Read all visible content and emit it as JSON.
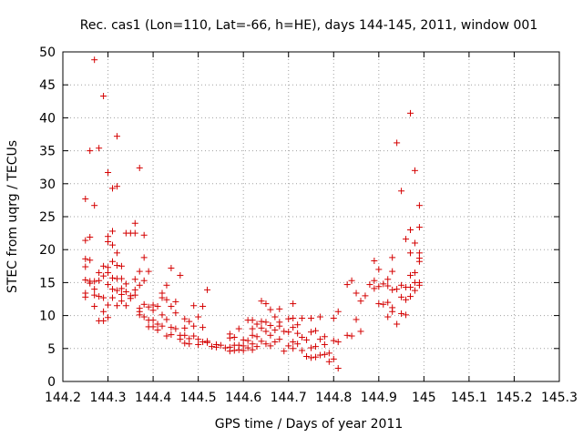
{
  "chart_data": {
    "type": "scatter",
    "title": "Rec. cas1 (Lon=110, Lat=-66, h=HE), days 144-145, 2011, window 001",
    "xlabel": "GPS time / Days of year 2011",
    "ylabel": "STEC from uqrg / TECUs",
    "xlim": [
      144.2,
      145.3
    ],
    "ylim": [
      0,
      50
    ],
    "xticks": [
      144.2,
      144.3,
      144.4,
      144.5,
      144.6,
      144.7,
      144.8,
      144.9,
      145.0,
      145.1,
      145.2,
      145.3
    ],
    "xtick_labels": [
      "144.2",
      "144.3",
      "144.4",
      "144.5",
      "144.6",
      "144.7",
      "144.8",
      "144.9",
      "145",
      "145.1",
      "145.2",
      "145.3"
    ],
    "yticks": [
      0,
      5,
      10,
      15,
      20,
      25,
      30,
      35,
      40,
      45,
      50
    ],
    "ytick_labels": [
      "0",
      "5",
      "10",
      "15",
      "20",
      "25",
      "30",
      "35",
      "40",
      "45",
      "50"
    ],
    "grid": true,
    "marker": "+",
    "color": "#d40000",
    "series": [
      {
        "name": "STEC",
        "points": [
          [
            144.25,
            27.7
          ],
          [
            144.25,
            21.4
          ],
          [
            144.25,
            18.6
          ],
          [
            144.25,
            17.4
          ],
          [
            144.25,
            15.4
          ],
          [
            144.25,
            13.4
          ],
          [
            144.25,
            12.8
          ],
          [
            144.26,
            35.0
          ],
          [
            144.26,
            21.9
          ],
          [
            144.26,
            18.4
          ],
          [
            144.26,
            15.2
          ],
          [
            144.26,
            14.9
          ],
          [
            144.27,
            48.8
          ],
          [
            144.27,
            26.7
          ],
          [
            144.27,
            15.2
          ],
          [
            144.27,
            14.0
          ],
          [
            144.27,
            13.1
          ],
          [
            144.27,
            11.4
          ],
          [
            144.28,
            35.4
          ],
          [
            144.28,
            16.5
          ],
          [
            144.28,
            15.3
          ],
          [
            144.28,
            12.9
          ],
          [
            144.28,
            9.2
          ],
          [
            144.29,
            43.3
          ],
          [
            144.29,
            17.5
          ],
          [
            144.29,
            16.0
          ],
          [
            144.29,
            12.7
          ],
          [
            144.29,
            10.6
          ],
          [
            144.29,
            9.2
          ],
          [
            144.3,
            31.7
          ],
          [
            144.3,
            22.0
          ],
          [
            144.3,
            21.2
          ],
          [
            144.3,
            17.3
          ],
          [
            144.3,
            16.5
          ],
          [
            144.3,
            14.7
          ],
          [
            144.3,
            11.6
          ],
          [
            144.3,
            9.7
          ],
          [
            144.31,
            29.3
          ],
          [
            144.31,
            22.8
          ],
          [
            144.31,
            20.7
          ],
          [
            144.31,
            18.2
          ],
          [
            144.31,
            15.7
          ],
          [
            144.31,
            14.0
          ],
          [
            144.31,
            12.7
          ],
          [
            144.32,
            37.2
          ],
          [
            144.32,
            29.6
          ],
          [
            144.32,
            19.5
          ],
          [
            144.32,
            17.6
          ],
          [
            144.32,
            15.6
          ],
          [
            144.32,
            13.8
          ],
          [
            144.32,
            11.5
          ],
          [
            144.33,
            17.5
          ],
          [
            144.33,
            15.6
          ],
          [
            144.33,
            14.1
          ],
          [
            144.33,
            13.2
          ],
          [
            144.33,
            12.2
          ],
          [
            144.34,
            22.5
          ],
          [
            144.34,
            14.8
          ],
          [
            144.34,
            13.6
          ],
          [
            144.34,
            11.5
          ],
          [
            144.35,
            22.5
          ],
          [
            144.35,
            13.0
          ],
          [
            144.35,
            12.6
          ],
          [
            144.36,
            24.0
          ],
          [
            144.36,
            22.5
          ],
          [
            144.36,
            15.5
          ],
          [
            144.36,
            13.9
          ],
          [
            144.36,
            13.1
          ],
          [
            144.37,
            32.4
          ],
          [
            144.37,
            16.7
          ],
          [
            144.37,
            14.6
          ],
          [
            144.37,
            11.1
          ],
          [
            144.37,
            10.6
          ],
          [
            144.37,
            10.1
          ],
          [
            144.38,
            22.2
          ],
          [
            144.38,
            18.8
          ],
          [
            144.38,
            15.3
          ],
          [
            144.38,
            11.7
          ],
          [
            144.38,
            9.8
          ],
          [
            144.39,
            16.7
          ],
          [
            144.39,
            11.3
          ],
          [
            144.39,
            9.3
          ],
          [
            144.39,
            8.3
          ],
          [
            144.4,
            11.6
          ],
          [
            144.4,
            10.8
          ],
          [
            144.4,
            9.3
          ],
          [
            144.4,
            8.3
          ],
          [
            144.41,
            11.4
          ],
          [
            144.41,
            8.7
          ],
          [
            144.41,
            7.8
          ],
          [
            144.42,
            13.4
          ],
          [
            144.42,
            12.7
          ],
          [
            144.42,
            10.1
          ],
          [
            144.42,
            8.4
          ],
          [
            144.43,
            14.6
          ],
          [
            144.43,
            12.4
          ],
          [
            144.43,
            9.4
          ],
          [
            144.43,
            6.9
          ],
          [
            144.44,
            17.2
          ],
          [
            144.44,
            11.4
          ],
          [
            144.44,
            8.2
          ],
          [
            144.44,
            7.1
          ],
          [
            144.45,
            12.1
          ],
          [
            144.45,
            10.4
          ],
          [
            144.45,
            8.0
          ],
          [
            144.46,
            16.1
          ],
          [
            144.46,
            7.0
          ],
          [
            144.46,
            6.4
          ],
          [
            144.47,
            9.5
          ],
          [
            144.47,
            8.1
          ],
          [
            144.47,
            7.0
          ],
          [
            144.47,
            5.8
          ],
          [
            144.48,
            9.1
          ],
          [
            144.48,
            6.5
          ],
          [
            144.48,
            5.7
          ],
          [
            144.49,
            11.5
          ],
          [
            144.49,
            8.4
          ],
          [
            144.49,
            6.9
          ],
          [
            144.5,
            9.8
          ],
          [
            144.5,
            6.4
          ],
          [
            144.5,
            5.6
          ],
          [
            144.51,
            11.4
          ],
          [
            144.51,
            8.2
          ],
          [
            144.51,
            6.0
          ],
          [
            144.52,
            13.9
          ],
          [
            144.52,
            6.1
          ],
          [
            144.52,
            5.9
          ],
          [
            144.53,
            5.3
          ],
          [
            144.54,
            5.6
          ],
          [
            144.54,
            5.2
          ],
          [
            144.55,
            5.5
          ],
          [
            144.56,
            5.1
          ],
          [
            144.57,
            7.2
          ],
          [
            144.57,
            6.6
          ],
          [
            144.57,
            5.2
          ],
          [
            144.57,
            4.6
          ],
          [
            144.58,
            6.7
          ],
          [
            144.58,
            5.5
          ],
          [
            144.58,
            4.7
          ],
          [
            144.59,
            8.0
          ],
          [
            144.59,
            5.5
          ],
          [
            144.59,
            4.8
          ],
          [
            144.6,
            6.3
          ],
          [
            144.6,
            5.4
          ],
          [
            144.6,
            4.7
          ],
          [
            144.61,
            9.3
          ],
          [
            144.61,
            6.2
          ],
          [
            144.61,
            5.1
          ],
          [
            144.62,
            9.3
          ],
          [
            144.62,
            8.0
          ],
          [
            144.62,
            7.0
          ],
          [
            144.62,
            5.7
          ],
          [
            144.62,
            4.8
          ],
          [
            144.63,
            8.7
          ],
          [
            144.63,
            6.8
          ],
          [
            144.63,
            5.3
          ],
          [
            144.64,
            12.2
          ],
          [
            144.64,
            9.1
          ],
          [
            144.64,
            8.1
          ],
          [
            144.64,
            6.1
          ],
          [
            144.65,
            11.8
          ],
          [
            144.65,
            9.0
          ],
          [
            144.65,
            7.6
          ],
          [
            144.65,
            5.7
          ],
          [
            144.66,
            10.9
          ],
          [
            144.66,
            8.5
          ],
          [
            144.66,
            7.0
          ],
          [
            144.66,
            5.4
          ],
          [
            144.67,
            9.8
          ],
          [
            144.67,
            7.8
          ],
          [
            144.67,
            6.0
          ],
          [
            144.68,
            11.0
          ],
          [
            144.68,
            9.0
          ],
          [
            144.68,
            8.4
          ],
          [
            144.68,
            6.4
          ],
          [
            144.69,
            7.6
          ],
          [
            144.69,
            4.6
          ],
          [
            144.7,
            9.5
          ],
          [
            144.7,
            7.5
          ],
          [
            144.7,
            5.4
          ],
          [
            144.71,
            11.8
          ],
          [
            144.71,
            9.6
          ],
          [
            144.71,
            8.2
          ],
          [
            144.71,
            6.0
          ],
          [
            144.71,
            5.0
          ],
          [
            144.72,
            8.6
          ],
          [
            144.72,
            7.3
          ],
          [
            144.72,
            5.7
          ],
          [
            144.73,
            9.6
          ],
          [
            144.73,
            6.7
          ],
          [
            144.73,
            4.7
          ],
          [
            144.74,
            6.3
          ],
          [
            144.74,
            3.8
          ],
          [
            144.75,
            9.6
          ],
          [
            144.75,
            7.5
          ],
          [
            144.75,
            5.1
          ],
          [
            144.75,
            3.6
          ],
          [
            144.76,
            7.7
          ],
          [
            144.76,
            5.3
          ],
          [
            144.76,
            3.7
          ],
          [
            144.77,
            9.8
          ],
          [
            144.77,
            6.4
          ],
          [
            144.77,
            4.0
          ],
          [
            144.78,
            6.8
          ],
          [
            144.78,
            5.6
          ],
          [
            144.78,
            4.1
          ],
          [
            144.79,
            4.3
          ],
          [
            144.79,
            3.0
          ],
          [
            144.8,
            9.6
          ],
          [
            144.8,
            6.2
          ],
          [
            144.8,
            3.4
          ],
          [
            144.81,
            10.6
          ],
          [
            144.81,
            6.0
          ],
          [
            144.81,
            2.0
          ],
          [
            144.83,
            14.7
          ],
          [
            144.83,
            7.0
          ],
          [
            144.84,
            15.3
          ],
          [
            144.84,
            6.9
          ],
          [
            144.85,
            13.4
          ],
          [
            144.85,
            9.4
          ],
          [
            144.86,
            12.2
          ],
          [
            144.86,
            7.6
          ],
          [
            144.87,
            13.0
          ],
          [
            144.88,
            14.7
          ],
          [
            144.89,
            18.3
          ],
          [
            144.89,
            15.3
          ],
          [
            144.89,
            14.1
          ],
          [
            144.9,
            17.0
          ],
          [
            144.9,
            14.4
          ],
          [
            144.9,
            11.8
          ],
          [
            144.91,
            14.8
          ],
          [
            144.91,
            11.7
          ],
          [
            144.92,
            15.5
          ],
          [
            144.92,
            14.5
          ],
          [
            144.92,
            12.0
          ],
          [
            144.92,
            9.8
          ],
          [
            144.93,
            18.8
          ],
          [
            144.93,
            16.7
          ],
          [
            144.93,
            13.9
          ],
          [
            144.93,
            11.2
          ],
          [
            144.93,
            10.6
          ],
          [
            144.94,
            36.2
          ],
          [
            144.94,
            14.0
          ],
          [
            144.94,
            8.7
          ],
          [
            144.95,
            28.9
          ],
          [
            144.95,
            14.6
          ],
          [
            144.95,
            12.8
          ],
          [
            144.95,
            10.3
          ],
          [
            144.96,
            21.6
          ],
          [
            144.96,
            14.3
          ],
          [
            144.96,
            12.4
          ],
          [
            144.96,
            10.1
          ],
          [
            144.97,
            40.7
          ],
          [
            144.97,
            23.0
          ],
          [
            144.97,
            19.5
          ],
          [
            144.97,
            16.1
          ],
          [
            144.97,
            14.3
          ],
          [
            144.97,
            12.9
          ],
          [
            144.98,
            32.0
          ],
          [
            144.98,
            21.0
          ],
          [
            144.98,
            16.5
          ],
          [
            144.98,
            15.0
          ],
          [
            144.98,
            13.8
          ],
          [
            144.99,
            26.7
          ],
          [
            144.99,
            23.4
          ],
          [
            144.99,
            19.5
          ],
          [
            144.99,
            18.7
          ],
          [
            144.99,
            18.2
          ],
          [
            144.99,
            15.0
          ],
          [
            144.99,
            14.6
          ]
        ]
      }
    ]
  }
}
